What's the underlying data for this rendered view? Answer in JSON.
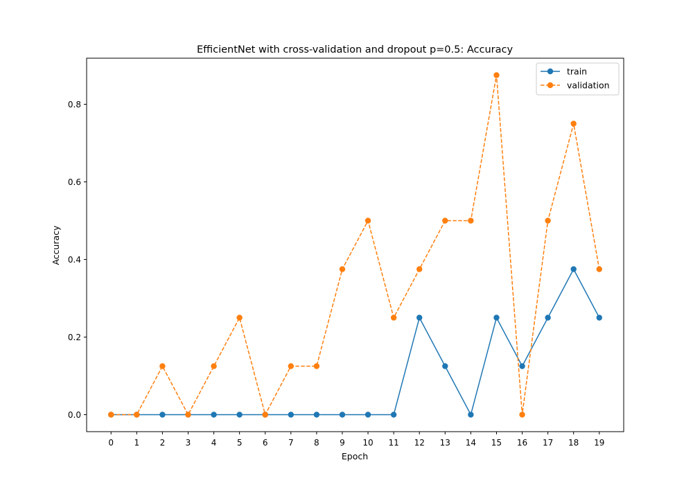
{
  "chart_data": {
    "type": "line",
    "title": "EfficientNet with cross-validation and dropout p=0.5: Accuracy",
    "xlabel": "Epoch",
    "ylabel": "Accuracy",
    "x": [
      0,
      1,
      2,
      3,
      4,
      5,
      6,
      7,
      8,
      9,
      10,
      11,
      12,
      13,
      14,
      15,
      16,
      17,
      18,
      19
    ],
    "x_tick_labels": [
      "0",
      "1",
      "2",
      "3",
      "4",
      "5",
      "6",
      "7",
      "8",
      "9",
      "10",
      "11",
      "12",
      "13",
      "14",
      "15",
      "16",
      "17",
      "18",
      "19"
    ],
    "y_ticks": [
      0.0,
      0.2,
      0.4,
      0.6,
      0.8
    ],
    "y_tick_labels": [
      "0.0",
      "0.2",
      "0.4",
      "0.6",
      "0.8"
    ],
    "xlim": [
      -0.95,
      19.95
    ],
    "ylim": [
      -0.04375,
      0.91875
    ],
    "grid": false,
    "legend_position": "top-right",
    "series": [
      {
        "name": "train",
        "color": "#1f77b4",
        "line_style": "solid",
        "marker": "circle",
        "values": [
          0,
          0,
          0,
          0,
          0,
          0,
          0,
          0,
          0,
          0,
          0,
          0,
          0.25,
          0.125,
          0,
          0.25,
          0.125,
          0.25,
          0.375,
          0.25
        ]
      },
      {
        "name": "validation",
        "color": "#ff7f0e",
        "line_style": "dashed",
        "marker": "circle",
        "values": [
          0,
          0,
          0.125,
          0,
          0.125,
          0.25,
          0,
          0.125,
          0.125,
          0.375,
          0.5,
          0.25,
          0.375,
          0.5,
          0.5,
          0.875,
          0,
          0.5,
          0.75,
          0.375
        ]
      }
    ]
  }
}
